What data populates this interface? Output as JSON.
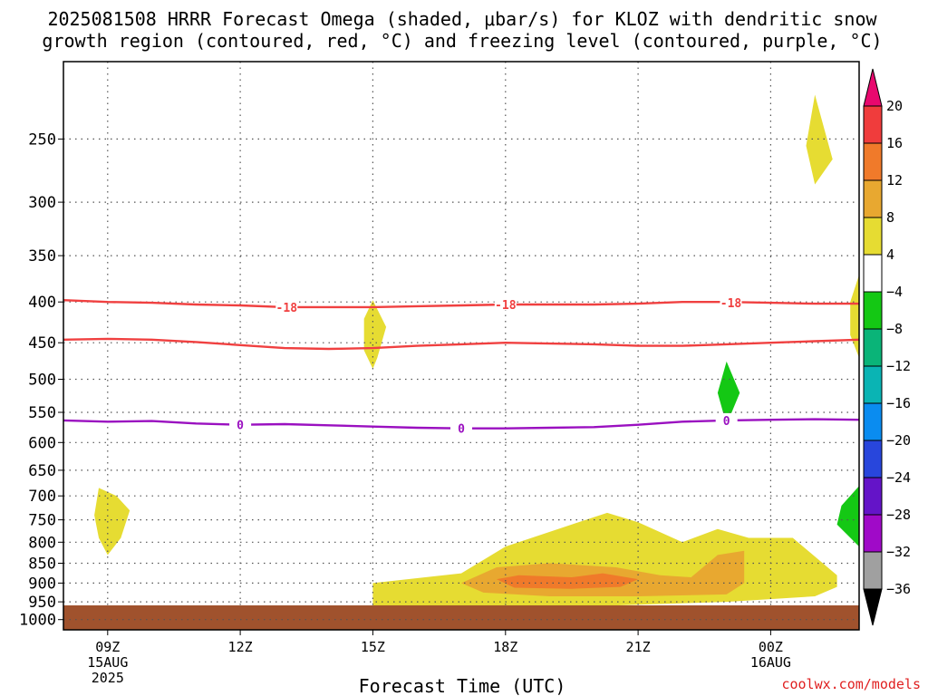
{
  "chart_data": {
    "type": "heatmap",
    "title_line1": "2025081508 HRRR Forecast Omega (shaded, μbar/s) for KLOZ with dendritic snow",
    "title_line2": "growth region (contoured, red, °C) and freezing level (contoured, purple, °C)",
    "xlabel": "Forecast Time (UTC)",
    "credit": "coolwx.com/models",
    "x_ticks": [
      {
        "hour": 9,
        "lines": [
          "09Z",
          "15AUG",
          "2025"
        ]
      },
      {
        "hour": 12,
        "lines": [
          "12Z"
        ]
      },
      {
        "hour": 15,
        "lines": [
          "15Z"
        ]
      },
      {
        "hour": 18,
        "lines": [
          "18Z"
        ]
      },
      {
        "hour": 21,
        "lines": [
          "21Z"
        ]
      },
      {
        "hour": 24,
        "lines": [
          "00Z",
          "16AUG"
        ]
      }
    ],
    "xlim": [
      8,
      26
    ],
    "y_ticks": [
      250,
      300,
      350,
      400,
      450,
      500,
      550,
      600,
      650,
      700,
      750,
      800,
      850,
      900,
      950,
      1000
    ],
    "ylim_hPa": [
      200,
      1030
    ],
    "colorbar": {
      "labels": [
        "20",
        "16",
        "12",
        "8",
        "4",
        "−4",
        "−8",
        "−12",
        "−16",
        "−20",
        "−24",
        "−28",
        "−32",
        "−36"
      ],
      "colors": [
        "#e8086e",
        "#f03c3c",
        "#f07a2a",
        "#e8a830",
        "#e6dc32",
        "#ffffff",
        "#14c814",
        "#0ab478",
        "#0ab4b4",
        "#0a8cf0",
        "#2846dc",
        "#6414c8",
        "#a00ac8",
        "#a0a0a0",
        "#000000"
      ]
    },
    "contours": [
      {
        "name": "-18",
        "color": "#f04040",
        "labels": [
          {
            "x": 13.05,
            "y": 406
          },
          {
            "x": 18.0,
            "y": 403
          },
          {
            "x": 23.1,
            "y": 401
          }
        ],
        "points": [
          [
            8,
            398
          ],
          [
            9,
            400
          ],
          [
            10,
            401
          ],
          [
            11,
            403
          ],
          [
            12,
            404
          ],
          [
            13,
            406
          ],
          [
            14,
            406
          ],
          [
            15,
            406
          ],
          [
            16,
            405
          ],
          [
            17,
            404
          ],
          [
            18,
            403
          ],
          [
            19,
            403
          ],
          [
            20,
            403
          ],
          [
            21,
            402
          ],
          [
            22,
            400
          ],
          [
            23,
            400
          ],
          [
            24,
            401
          ],
          [
            25,
            402
          ],
          [
            26,
            402
          ]
        ]
      },
      {
        "name": "",
        "color": "#f04040",
        "labels": [],
        "points": [
          [
            8,
            446
          ],
          [
            9,
            445
          ],
          [
            10,
            446
          ],
          [
            11,
            449
          ],
          [
            12,
            453
          ],
          [
            13,
            457
          ],
          [
            14,
            458
          ],
          [
            15,
            457
          ],
          [
            16,
            454
          ],
          [
            17,
            452
          ],
          [
            18,
            450
          ],
          [
            19,
            451
          ],
          [
            20,
            452
          ],
          [
            21,
            454
          ],
          [
            22,
            454
          ],
          [
            23,
            452
          ],
          [
            24,
            450
          ],
          [
            25,
            448
          ],
          [
            26,
            446
          ]
        ]
      },
      {
        "name": "0",
        "color": "#9a10c0",
        "labels": [
          {
            "x": 12.0,
            "y": 570
          },
          {
            "x": 17.0,
            "y": 576
          },
          {
            "x": 23.0,
            "y": 563
          }
        ],
        "points": [
          [
            8,
            563
          ],
          [
            9,
            565
          ],
          [
            10,
            564
          ],
          [
            11,
            568
          ],
          [
            12,
            570
          ],
          [
            13,
            569
          ],
          [
            14,
            571
          ],
          [
            15,
            573
          ],
          [
            16,
            575
          ],
          [
            17,
            576
          ],
          [
            18,
            576
          ],
          [
            19,
            575
          ],
          [
            20,
            574
          ],
          [
            21,
            570
          ],
          [
            22,
            565
          ],
          [
            23,
            563
          ],
          [
            24,
            562
          ],
          [
            25,
            561
          ],
          [
            26,
            562
          ]
        ]
      }
    ],
    "shaded": [
      {
        "color": "#e6dc32",
        "points": [
          [
            8.8,
            684
          ],
          [
            9.2,
            700
          ],
          [
            9.5,
            730
          ],
          [
            9.3,
            790
          ],
          [
            9.0,
            830
          ],
          [
            8.8,
            790
          ],
          [
            8.7,
            740
          ]
        ]
      },
      {
        "color": "#e6dc32",
        "points": [
          [
            15.0,
            398
          ],
          [
            15.3,
            430
          ],
          [
            15.1,
            470
          ],
          [
            15.0,
            485
          ],
          [
            14.8,
            460
          ],
          [
            14.8,
            420
          ]
        ]
      },
      {
        "color": "#14c814",
        "points": [
          [
            23.0,
            475
          ],
          [
            23.3,
            520
          ],
          [
            23.0,
            570
          ],
          [
            22.8,
            520
          ]
        ]
      },
      {
        "color": "#e6dc32",
        "points": [
          [
            25.0,
            220
          ],
          [
            25.4,
            265
          ],
          [
            25.0,
            285
          ],
          [
            24.8,
            255
          ]
        ]
      },
      {
        "color": "#e6dc32",
        "points": [
          [
            26.0,
            370
          ],
          [
            25.8,
            400
          ],
          [
            25.8,
            440
          ],
          [
            26.0,
            470
          ]
        ]
      },
      {
        "color": "#14c814",
        "points": [
          [
            26.0,
            680
          ],
          [
            25.6,
            720
          ],
          [
            25.5,
            760
          ],
          [
            26.0,
            810
          ]
        ]
      },
      {
        "color": "#e6dc32",
        "points": [
          [
            15.0,
            900
          ],
          [
            17.0,
            875
          ],
          [
            18.0,
            810
          ],
          [
            19.5,
            760
          ],
          [
            20.3,
            735
          ],
          [
            21.0,
            755
          ],
          [
            22.0,
            800
          ],
          [
            22.8,
            770
          ],
          [
            23.5,
            790
          ],
          [
            24.5,
            790
          ],
          [
            25.5,
            880
          ],
          [
            25.5,
            910
          ],
          [
            25.0,
            935
          ],
          [
            23.0,
            950
          ],
          [
            20.0,
            962
          ],
          [
            17.0,
            965
          ],
          [
            15.0,
            960
          ]
        ]
      },
      {
        "color": "#e8a830",
        "points": [
          [
            17.0,
            900
          ],
          [
            17.8,
            860
          ],
          [
            19.0,
            850
          ],
          [
            20.5,
            860
          ],
          [
            21.5,
            880
          ],
          [
            22.2,
            885
          ],
          [
            22.8,
            830
          ],
          [
            23.4,
            820
          ],
          [
            23.4,
            900
          ],
          [
            23.0,
            930
          ],
          [
            21.0,
            935
          ],
          [
            19.0,
            935
          ],
          [
            17.5,
            925
          ]
        ]
      },
      {
        "color": "#f07a2a",
        "points": [
          [
            17.8,
            890
          ],
          [
            18.3,
            880
          ],
          [
            19.5,
            885
          ],
          [
            20.2,
            875
          ],
          [
            21.0,
            890
          ],
          [
            20.6,
            910
          ],
          [
            19.5,
            915
          ],
          [
            18.2,
            912
          ]
        ]
      }
    ]
  }
}
